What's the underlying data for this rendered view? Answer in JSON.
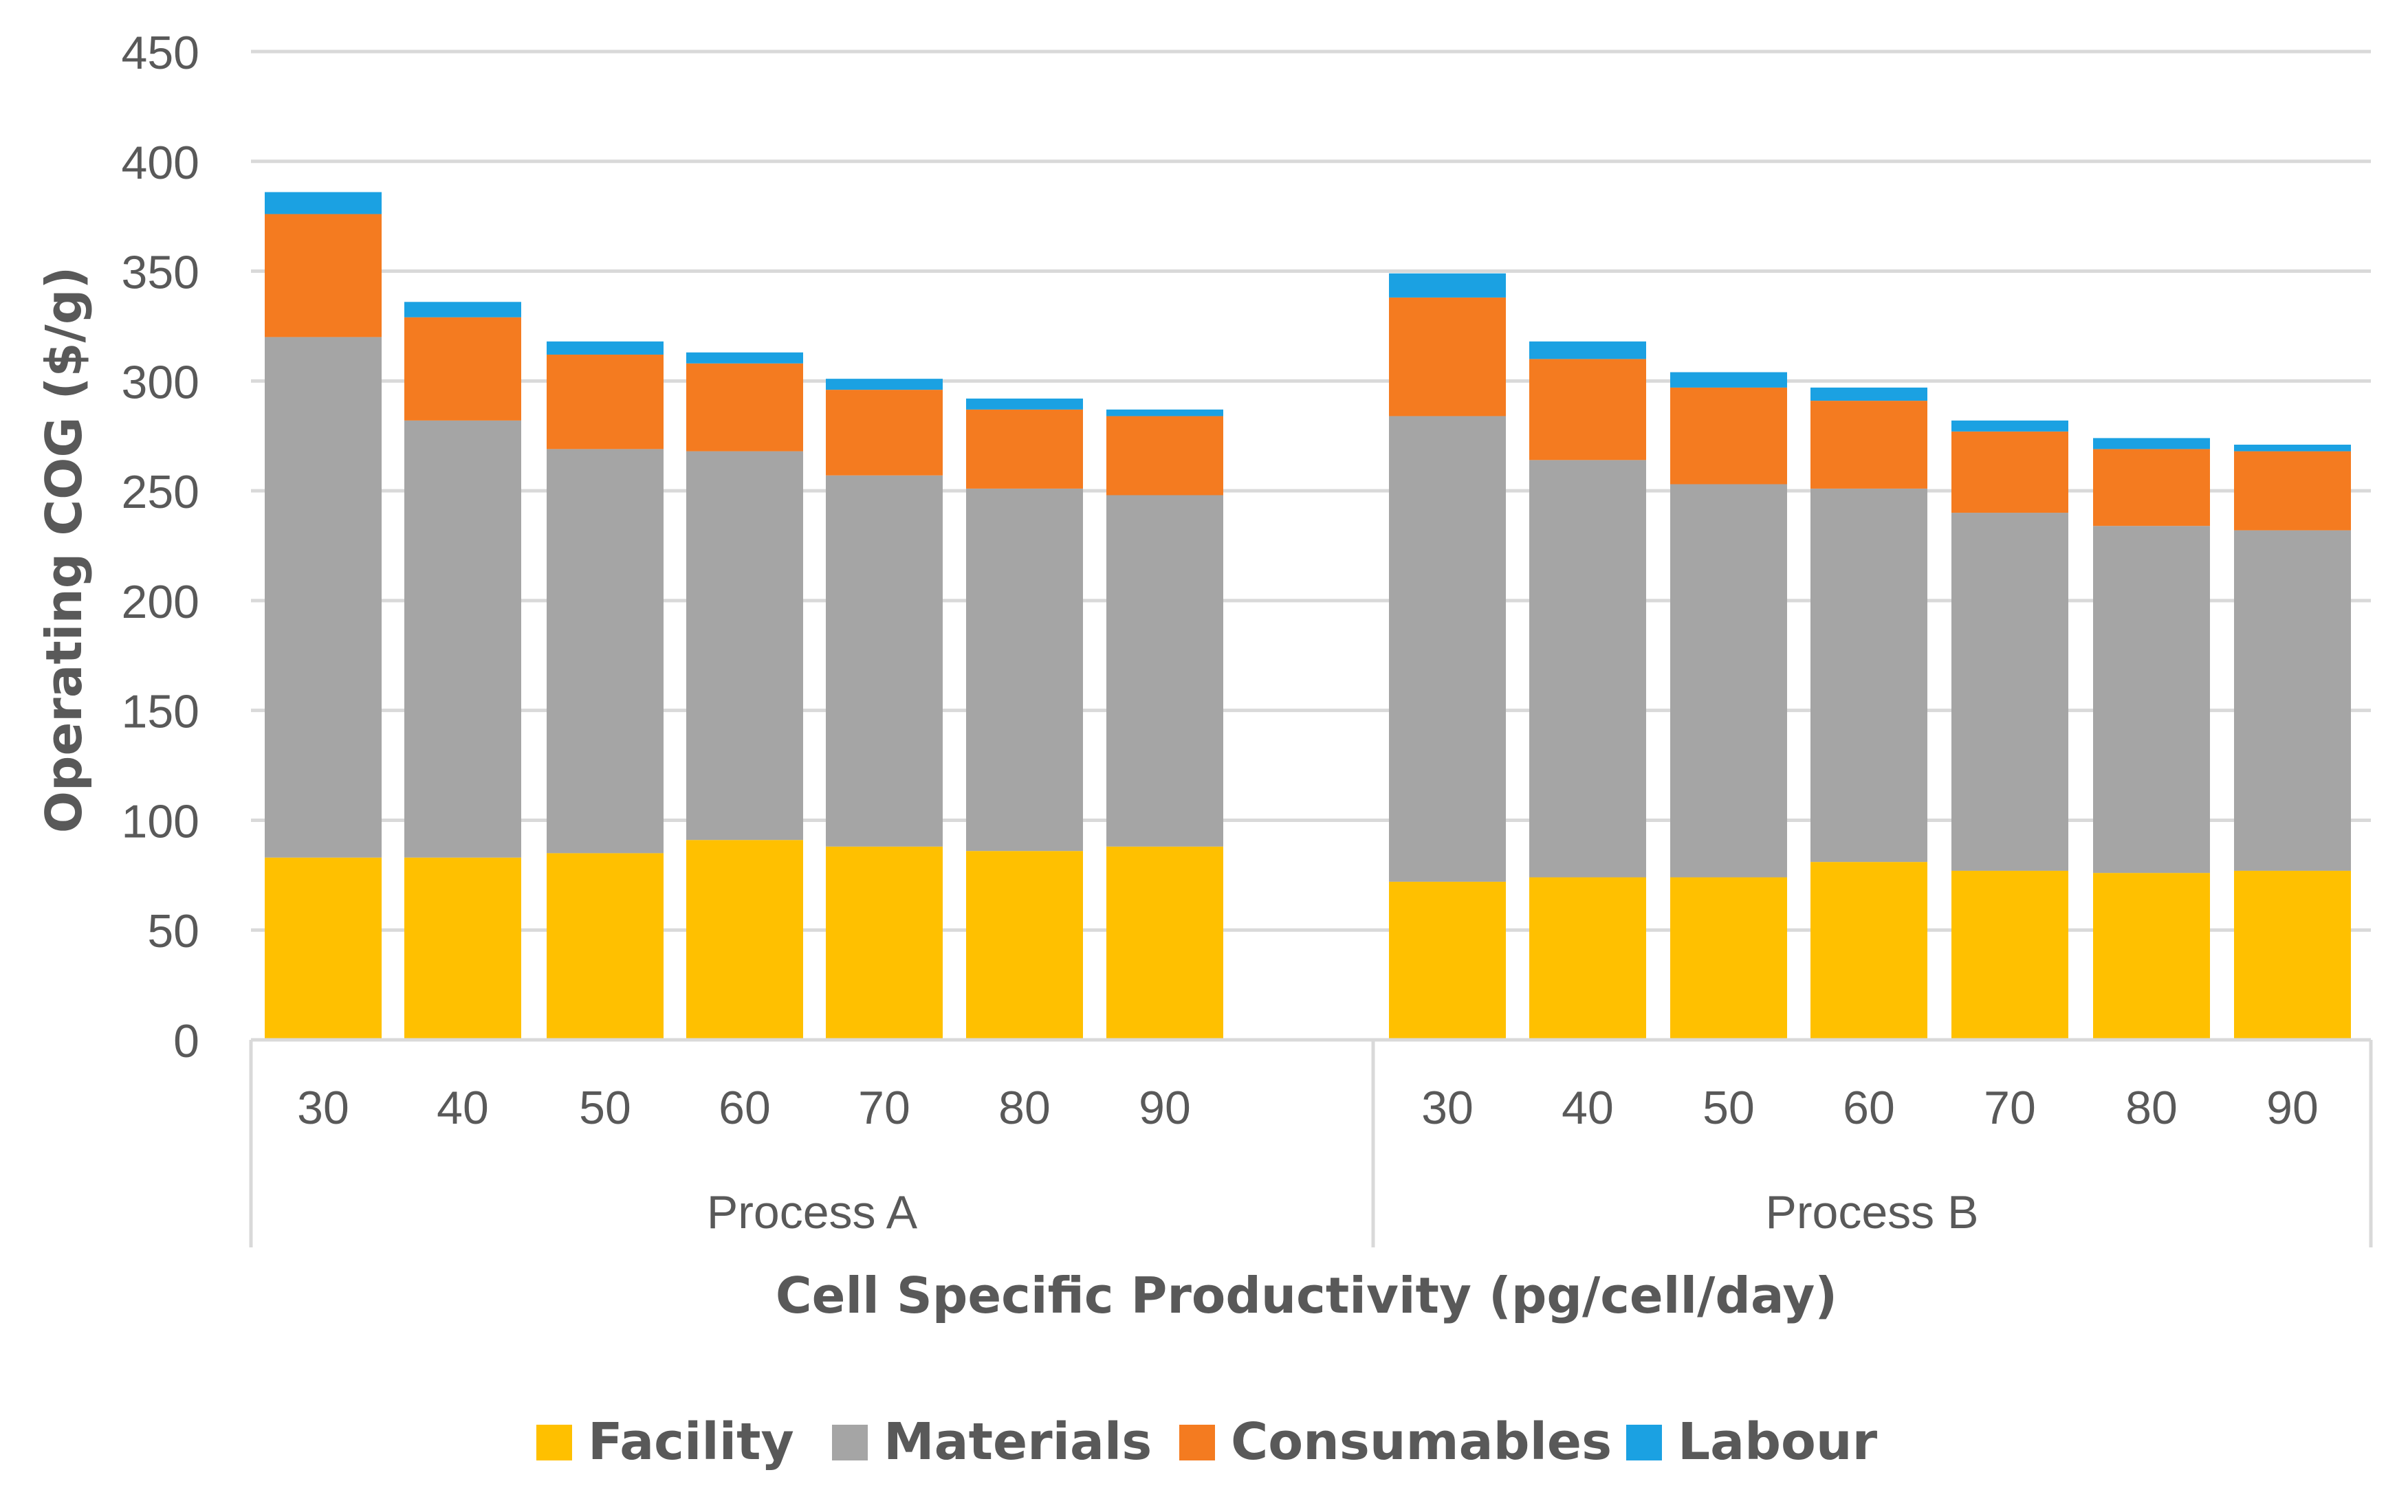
{
  "chart_data": {
    "type": "bar",
    "stacked": true,
    "ylabel": "Operating COG ($/g)",
    "xlabel": "Cell Specific Productivity  (pg/cell/day)",
    "ylim": [
      0,
      450
    ],
    "yticks": [
      0,
      50,
      100,
      150,
      200,
      250,
      300,
      350,
      400,
      450
    ],
    "grid": true,
    "legend_position": "bottom",
    "groups": [
      {
        "name": "Process A",
        "categories": [
          "30",
          "40",
          "50",
          "60",
          "70",
          "80",
          "90"
        ]
      },
      {
        "name": "Process B",
        "categories": [
          "30",
          "40",
          "50",
          "60",
          "70",
          "80",
          "90"
        ]
      }
    ],
    "series": [
      {
        "name": "Facility",
        "color": "#FFC000",
        "values": [
          83,
          83,
          85,
          91,
          88,
          86,
          88,
          72,
          74,
          74,
          81,
          77,
          76,
          77
        ]
      },
      {
        "name": "Materials",
        "color": "#A5A5A5",
        "values": [
          237,
          199,
          184,
          177,
          169,
          165,
          160,
          212,
          190,
          179,
          170,
          163,
          158,
          155
        ]
      },
      {
        "name": "Consumables",
        "color": "#F47B20",
        "values": [
          56,
          47,
          43,
          40,
          39,
          36,
          36,
          54,
          46,
          44,
          40,
          37,
          35,
          36
        ]
      },
      {
        "name": "Labour",
        "color": "#1BA1E2",
        "values": [
          10,
          7,
          6,
          5,
          5,
          5,
          3,
          11,
          8,
          7,
          6,
          5,
          5,
          3
        ]
      }
    ]
  }
}
